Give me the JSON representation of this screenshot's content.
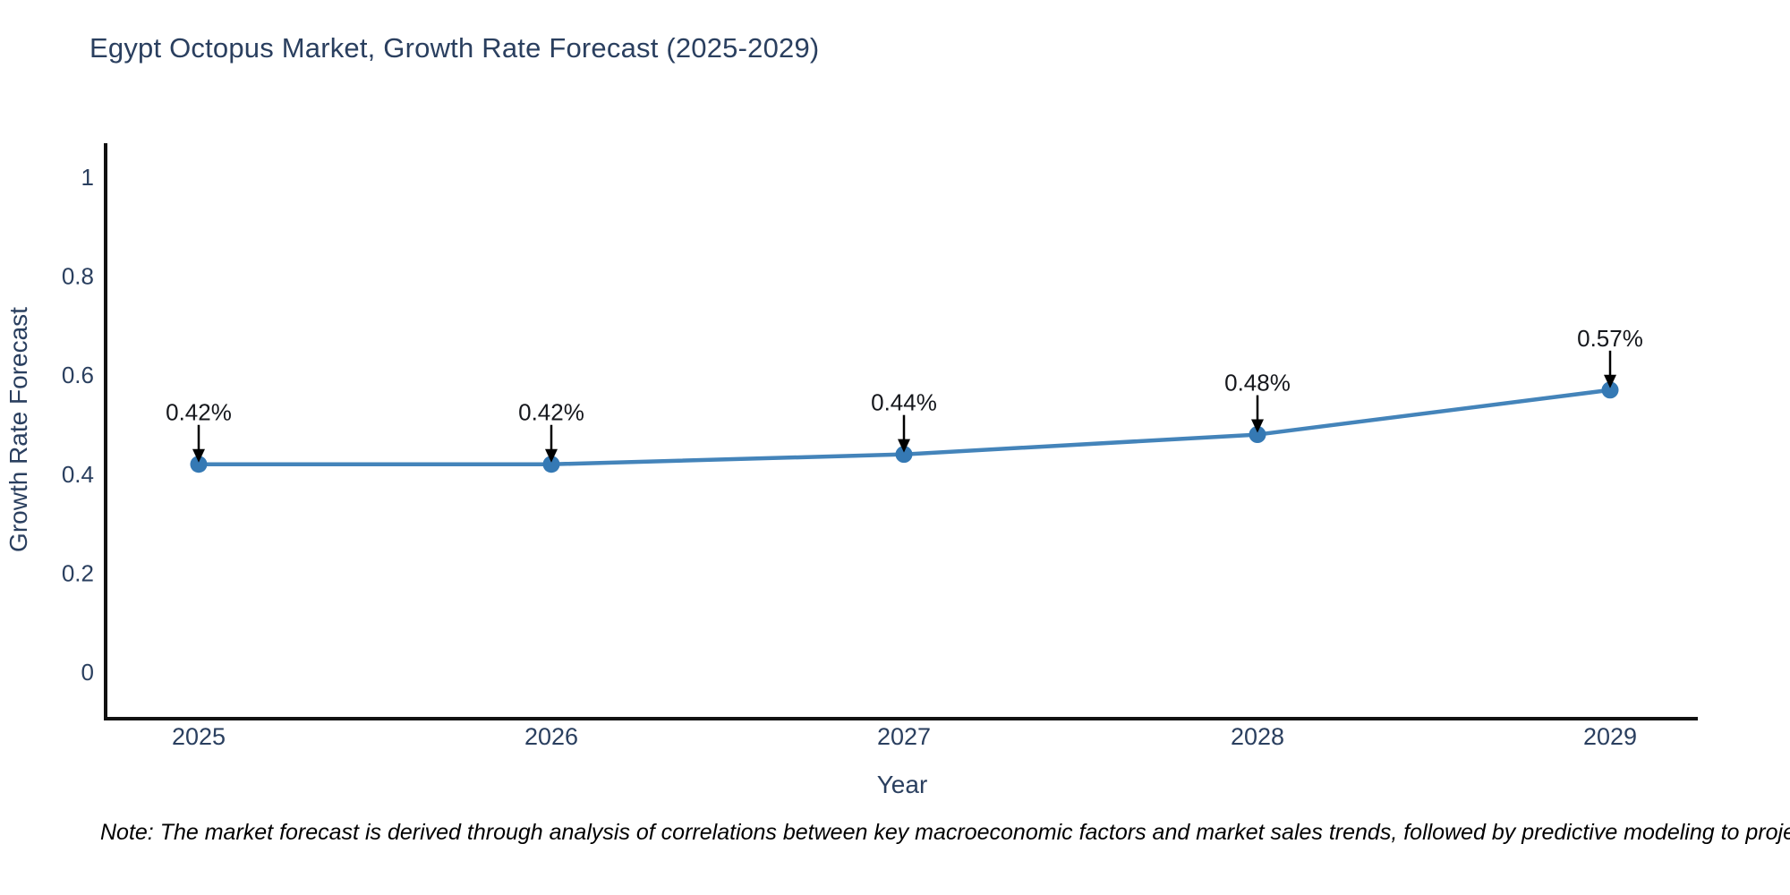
{
  "page": {
    "background": "#ffffff"
  },
  "chart_data": {
    "type": "line",
    "title": "Egypt Octopus Market, Growth Rate Forecast (2025-2029)",
    "xlabel": "Year",
    "ylabel": "Growth Rate Forecast",
    "categories": [
      "2025",
      "2026",
      "2027",
      "2028",
      "2029"
    ],
    "series": [
      {
        "name": "Growth Rate Forecast",
        "values": [
          0.42,
          0.42,
          0.44,
          0.48,
          0.57
        ],
        "point_labels": [
          "0.42%",
          "0.42%",
          "0.44%",
          "0.48%",
          "0.57%"
        ]
      }
    ],
    "ylim": [
      0,
      1
    ],
    "yticks": [
      {
        "value": 0,
        "label": "0"
      },
      {
        "value": 0.2,
        "label": "0.2"
      },
      {
        "value": 0.4,
        "label": "0.4"
      },
      {
        "value": 0.6,
        "label": "0.6"
      },
      {
        "value": 0.8,
        "label": "0.8"
      },
      {
        "value": 1,
        "label": "1"
      }
    ],
    "grid": false,
    "legend": "none",
    "annotation_style": "percentage labels with downward arrows above each marker"
  },
  "note": {
    "text": "Note: The market forecast is derived through analysis of correlations between key macroeconomic factors and market sales trends, followed by predictive modeling to project future sales"
  },
  "colors": {
    "line": "#4484ba",
    "marker": "#3579b4",
    "axis_line": "#111111",
    "axis_text": "#2a3f5f",
    "title_text": "#2a3f5f",
    "data_label": "#15171c",
    "arrow": "#000000",
    "note_text": "#000000"
  }
}
